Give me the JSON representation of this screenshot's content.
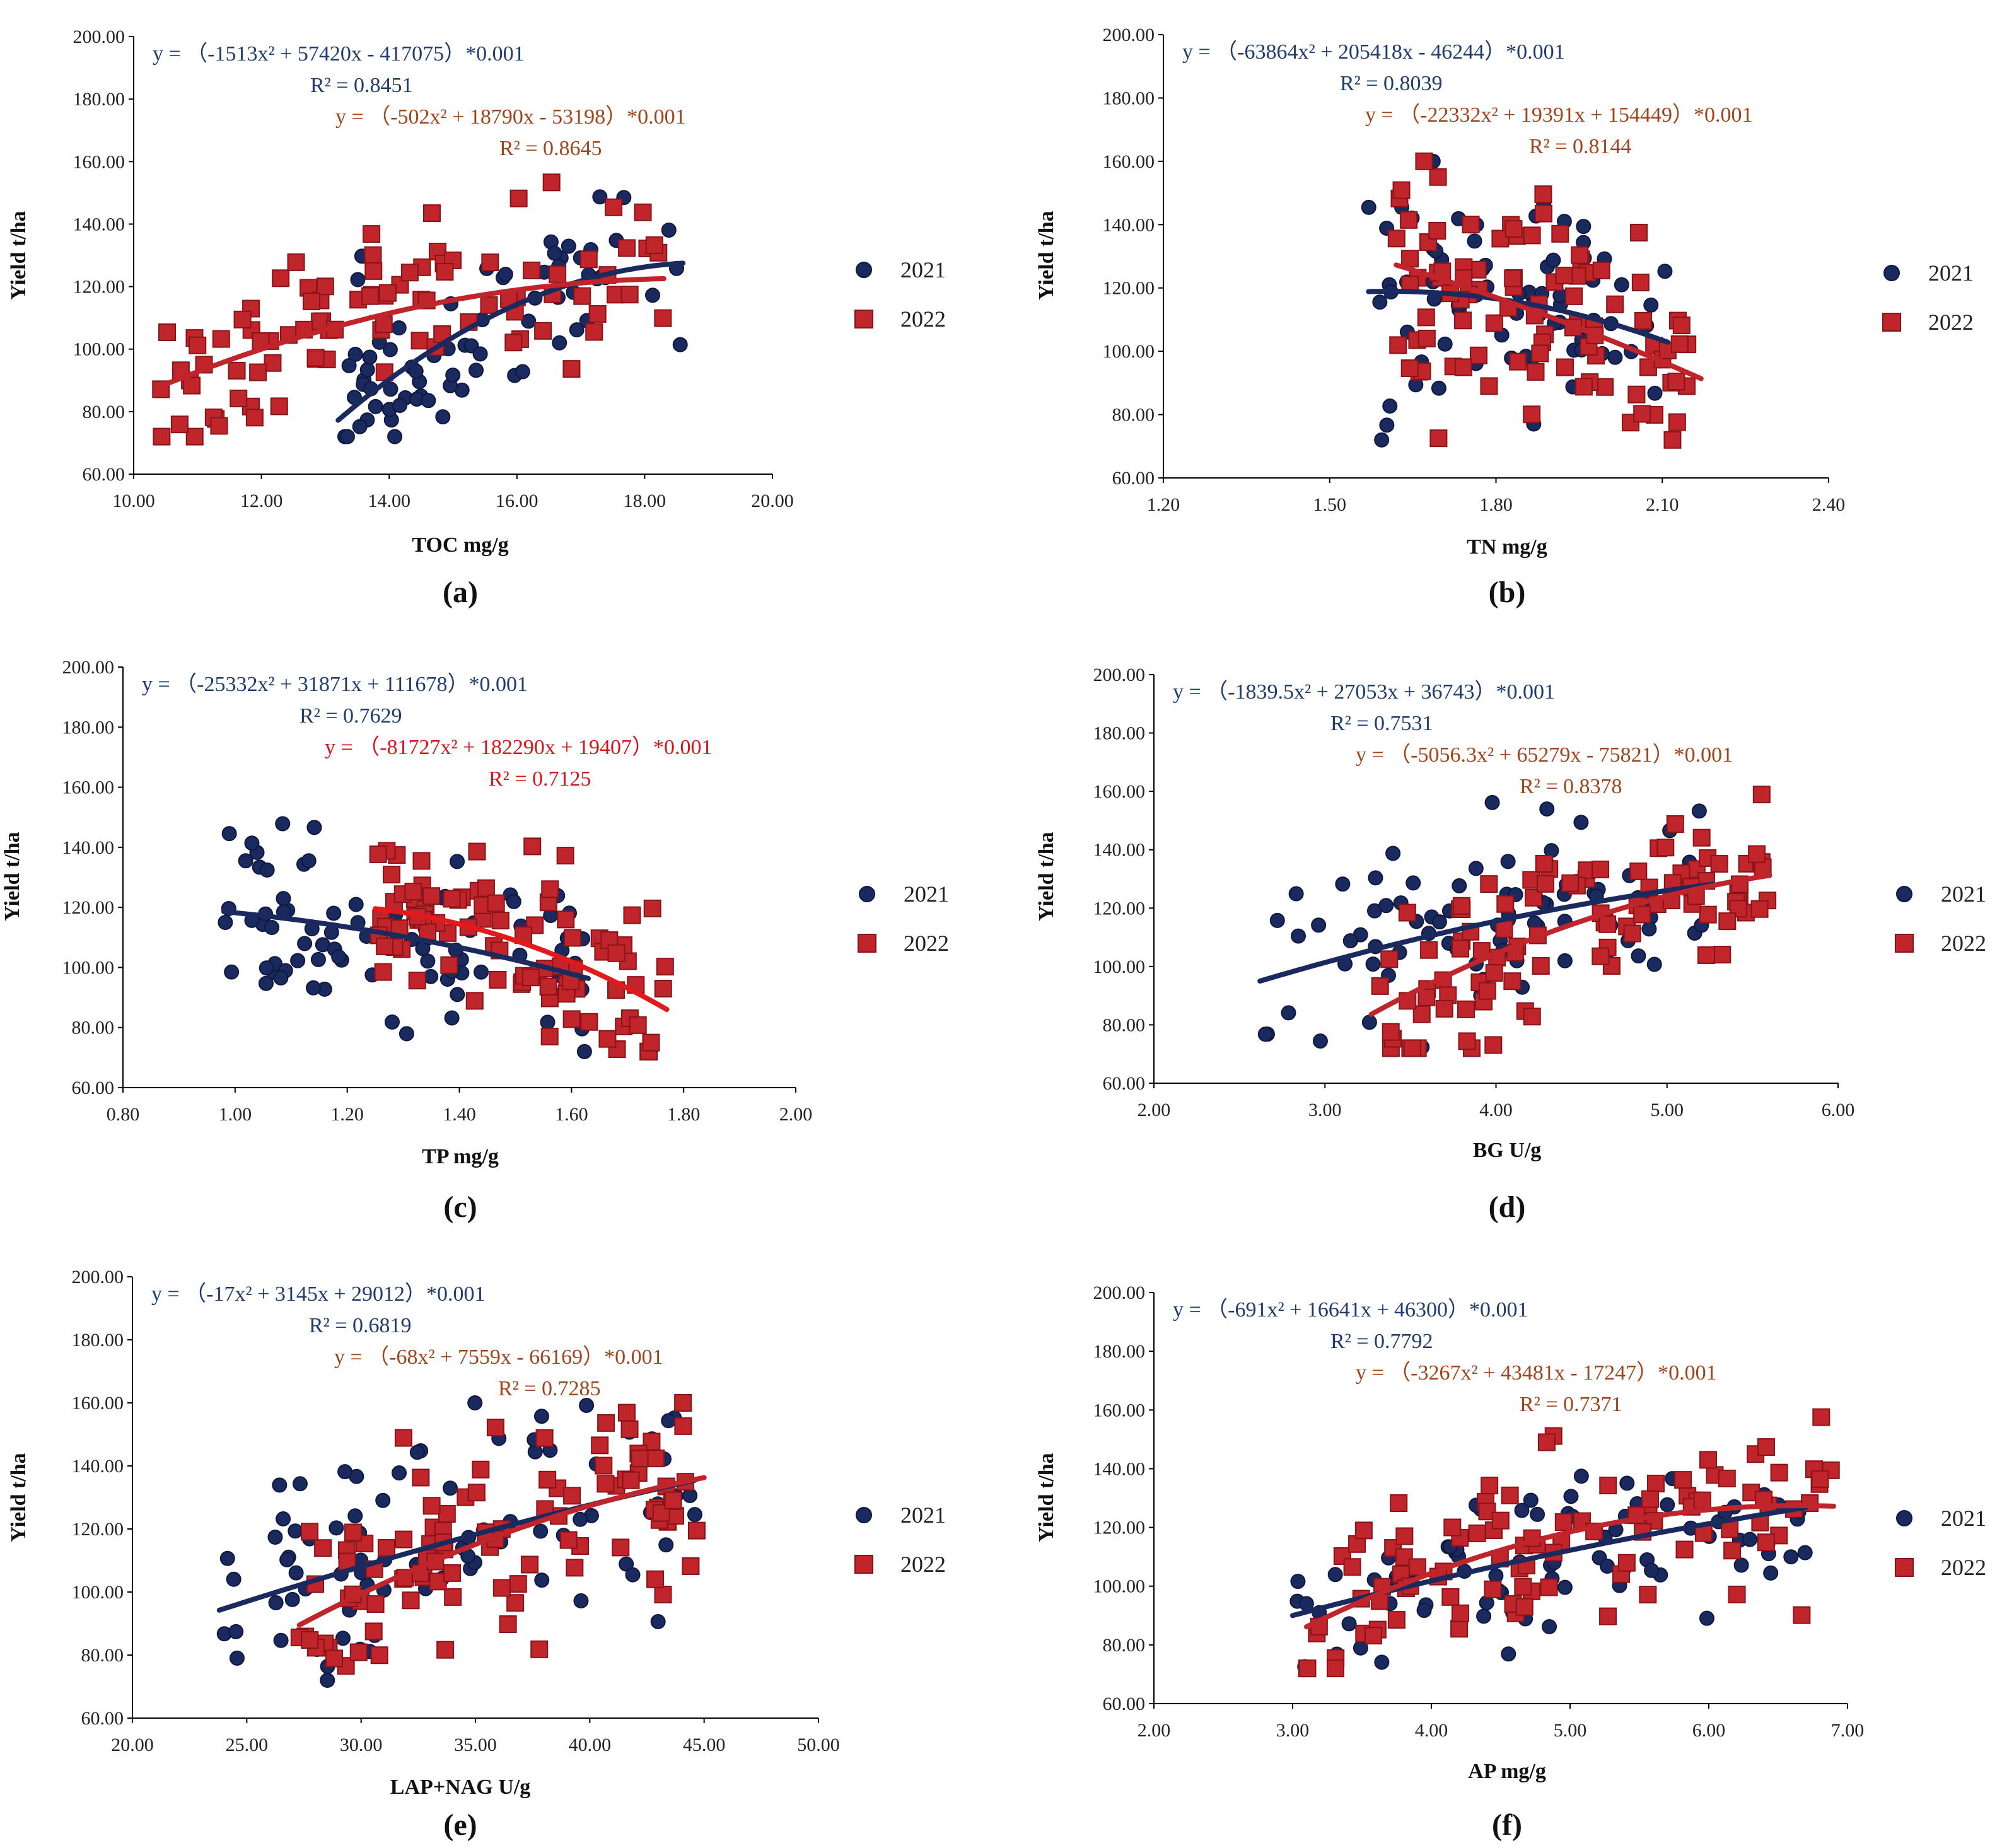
{
  "figure_label": "Yield regressions against soil properties (2021 vs 2022)",
  "colors": {
    "y2021": "#1b2a5e",
    "y2021_edge": "#0d1840",
    "y2022": "#c0252b",
    "y2022_edge": "#8a1318",
    "eq2021": "#1f3c6e",
    "eq2022_brown": "#a0441c",
    "eq2022_red": "#d8141b",
    "axis": "#000000"
  },
  "chart_data": [
    {
      "id": "a",
      "panel_label": "(a)",
      "type": "scatter",
      "xlabel": "TOC mg/g",
      "ylabel": "Yield t/ha",
      "xlim": [
        10,
        20
      ],
      "ylim": [
        60,
        200
      ],
      "x_ticks": [
        "10.00",
        "12.00",
        "14.00",
        "16.00",
        "18.00",
        "20.00"
      ],
      "y_ticks": [
        "60.00",
        "80.00",
        "100.00",
        "120.00",
        "140.00",
        "160.00",
        "180.00",
        "200.00"
      ],
      "legend": [
        "2021",
        "2022"
      ],
      "eq_2021": "y = （-1513x² + 57420x - 417075）*0.001",
      "r2_2021": "R² = 0.8451",
      "eq_2022": "y = （-502x² + 18790x - 53198）*0.001",
      "r2_2022": "R² = 0.8645",
      "eq_2022_color": "eq2022_brown",
      "fit_2021": {
        "a": -1.513,
        "b": 57.42,
        "c": -417.075,
        "x_range": [
          13.2,
          18.6
        ]
      },
      "fit_2022": {
        "a": -0.502,
        "b": 18.79,
        "c": -53.198,
        "x_range": [
          10.4,
          18.3
        ]
      },
      "gen_2021": {
        "n": 75,
        "x_range": [
          13.2,
          18.6
        ],
        "sd": 13,
        "seed": 11
      },
      "gen_2022": {
        "n": 95,
        "x_range": [
          10.4,
          18.3
        ],
        "sd": 15,
        "seed": 12
      }
    },
    {
      "id": "b",
      "panel_label": "(b)",
      "type": "scatter",
      "xlabel": "TN mg/g",
      "ylabel": "Yield t/ha",
      "xlim": [
        1.2,
        2.4
      ],
      "ylim": [
        60,
        200
      ],
      "x_ticks": [
        "1.20",
        "1.50",
        "1.80",
        "2.10",
        "2.40"
      ],
      "y_ticks": [
        "60.00",
        "80.00",
        "100.00",
        "120.00",
        "140.00",
        "160.00",
        "180.00",
        "200.00"
      ],
      "legend": [
        "2021",
        "2022"
      ],
      "eq_2021": "y = （-63864x² + 205418x - 46244）*0.001",
      "r2_2021": "R² = 0.8039",
      "eq_2022": "y = （-22332x² + 19391x + 154449）*0.001",
      "r2_2022": "R² = 0.8144",
      "eq_2022_color": "eq2022_brown",
      "fit_2021": {
        "a": -63.864,
        "b": 205.418,
        "c": -46.244,
        "x_range": [
          1.57,
          2.11
        ]
      },
      "fit_2022": {
        "a": -22.332,
        "b": 19.391,
        "c": 154.449,
        "x_range": [
          1.62,
          2.17
        ]
      },
      "gen_2021": {
        "n": 75,
        "x_range": [
          1.57,
          2.11
        ],
        "sd": 18,
        "seed": 21
      },
      "gen_2022": {
        "n": 95,
        "x_range": [
          1.62,
          2.17
        ],
        "sd": 17,
        "seed": 22
      }
    },
    {
      "id": "c",
      "panel_label": "(c)",
      "type": "scatter",
      "xlabel": "TP mg/g",
      "ylabel": "Yield t/ha",
      "xlim": [
        0.8,
        2.0
      ],
      "ylim": [
        60,
        200
      ],
      "x_ticks": [
        "0.80",
        "1.00",
        "1.20",
        "1.40",
        "1.60",
        "1.80",
        "2.00"
      ],
      "y_ticks": [
        "60.00",
        "80.00",
        "100.00",
        "120.00",
        "140.00",
        "160.00",
        "180.00",
        "200.00"
      ],
      "legend": [
        "2021",
        "2022"
      ],
      "eq_2021": "y = （-25332x² + 31871x + 111678）*0.001",
      "r2_2021": "R² = 0.7629",
      "eq_2022": "y = （-81727x² + 182290x + 19407）*0.001",
      "r2_2022": "R² = 0.7125",
      "eq_2022_color": "eq2022_red",
      "fit_2021": {
        "a": -25.332,
        "b": 31.871,
        "c": 111.678,
        "x_range": [
          0.98,
          1.63
        ]
      },
      "fit_2022": {
        "a": -81.727,
        "b": 182.29,
        "c": 19.407,
        "x_range": [
          1.25,
          1.77
        ]
      },
      "gen_2021": {
        "n": 90,
        "x_range": [
          0.98,
          1.63
        ],
        "sd": 15,
        "seed": 31
      },
      "gen_2022": {
        "n": 95,
        "x_range": [
          1.25,
          1.77
        ],
        "sd": 17,
        "seed": 32
      }
    },
    {
      "id": "d",
      "panel_label": "(d)",
      "type": "scatter",
      "xlabel": "BG U/g",
      "ylabel": "Yield t/ha",
      "xlim": [
        2,
        6
      ],
      "ylim": [
        60,
        200
      ],
      "x_ticks": [
        "2.00",
        "3.00",
        "4.00",
        "5.00",
        "6.00"
      ],
      "y_ticks": [
        "60.00",
        "80.00",
        "100.00",
        "120.00",
        "140.00",
        "160.00",
        "180.00",
        "200.00"
      ],
      "legend": [
        "2021",
        "2022"
      ],
      "eq_2021": "y = （-1839.5x² + 27053x + 36743）*0.001",
      "r2_2021": "R² = 0.7531",
      "eq_2022": "y = （-5056.3x² + 65279x - 75821）*0.001",
      "r2_2022": "R² = 0.8378",
      "eq_2022_color": "eq2022_brown",
      "fit_2021": {
        "a": -1.8395,
        "b": 27.053,
        "c": 36.743,
        "x_range": [
          2.62,
          5.27
        ]
      },
      "fit_2022": {
        "a": -5.0563,
        "b": 65.279,
        "c": -75.821,
        "x_range": [
          3.27,
          5.6
        ]
      },
      "gen_2021": {
        "n": 80,
        "x_range": [
          2.62,
          5.3
        ],
        "sd": 16,
        "seed": 41
      },
      "gen_2022": {
        "n": 100,
        "x_range": [
          3.27,
          5.6
        ],
        "sd": 15,
        "seed": 42
      }
    },
    {
      "id": "e",
      "panel_label": "(e)",
      "type": "scatter",
      "xlabel": "LAP+NAG U/g",
      "ylabel": "Yield t/ha",
      "xlim": [
        20,
        50
      ],
      "ylim": [
        60,
        200
      ],
      "x_ticks": [
        "20.00",
        "25.00",
        "30.00",
        "35.00",
        "40.00",
        "45.00",
        "50.00"
      ],
      "y_ticks": [
        "60.00",
        "80.00",
        "100.00",
        "120.00",
        "140.00",
        "160.00",
        "180.00",
        "200.00"
      ],
      "legend": [
        "2021",
        "2022"
      ],
      "eq_2021": "y = （-17x² + 3145x + 29012）*0.001",
      "r2_2021": "R² = 0.6819",
      "eq_2022": "y = （-68x² + 7559x - 66169）*0.001",
      "r2_2022": "R² = 0.7285",
      "eq_2022_color": "eq2022_brown",
      "fit_2021": {
        "a": -0.017,
        "b": 3.145,
        "c": 29.012,
        "x_range": [
          23.8,
          44.6
        ]
      },
      "fit_2022": {
        "a": -0.068,
        "b": 7.559,
        "c": -66.169,
        "x_range": [
          27.3,
          45.0
        ]
      },
      "gen_2021": {
        "n": 85,
        "x_range": [
          23.8,
          44.6
        ],
        "sd": 17,
        "seed": 51
      },
      "gen_2022": {
        "n": 100,
        "x_range": [
          27.3,
          45.0
        ],
        "sd": 16,
        "seed": 52
      }
    },
    {
      "id": "f",
      "panel_label": "(f)",
      "type": "scatter",
      "xlabel": "AP mg/g",
      "ylabel": "Yield t/ha",
      "xlim": [
        2,
        7
      ],
      "ylim": [
        60,
        200
      ],
      "x_ticks": [
        "2.00",
        "3.00",
        "4.00",
        "5.00",
        "6.00",
        "7.00"
      ],
      "y_ticks": [
        "60.00",
        "80.00",
        "100.00",
        "120.00",
        "140.00",
        "160.00",
        "180.00",
        "200.00"
      ],
      "legend": [
        "2021",
        "2022"
      ],
      "eq_2021": "y = （-691x² + 16641x + 46300）*0.001",
      "r2_2021": "R² = 0.7792",
      "eq_2022": "y = （-3267x² + 43481x - 17247）*0.001",
      "r2_2022": "R² = 0.7371",
      "eq_2022_color": "eq2022_brown",
      "fit_2021": {
        "a": -0.691,
        "b": 16.641,
        "c": 46.3,
        "x_range": [
          3.0,
          6.7
        ]
      },
      "fit_2022": {
        "a": -3.267,
        "b": 43.481,
        "c": -17.247,
        "x_range": [
          3.1,
          6.9
        ]
      },
      "gen_2021": {
        "n": 85,
        "x_range": [
          3.0,
          6.7
        ],
        "sd": 14,
        "seed": 61
      },
      "gen_2022": {
        "n": 100,
        "x_range": [
          3.1,
          6.9
        ],
        "sd": 15,
        "seed": 62
      }
    }
  ]
}
